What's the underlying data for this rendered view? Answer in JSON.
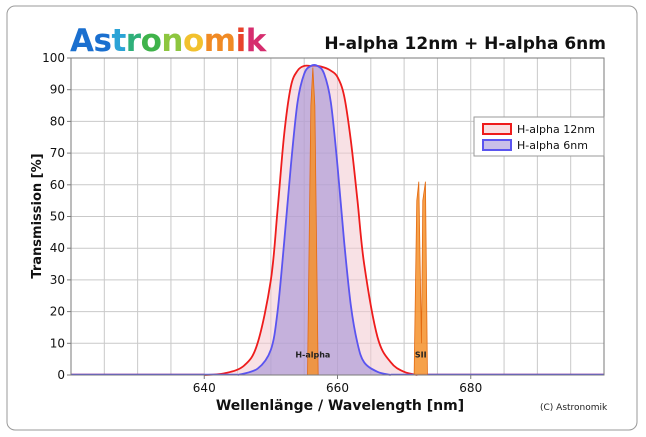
{
  "brand": {
    "name": "Astronomik",
    "letter_colors": [
      "#1a6fcf",
      "#1a6fcf",
      "#2ba3d6",
      "#2fb07a",
      "#3fb34a",
      "#8dc63f",
      "#f2c12e",
      "#f08a24",
      "#e8432b",
      "#d62d6e"
    ]
  },
  "colors": {
    "series_12nm_line": "#ee1c1c",
    "series_12nm_fill": "#f3c9cf",
    "series_6nm_line": "#5a54f0",
    "series_6nm_fill": "#9b8ad6",
    "emission_fill": "#f5902a",
    "emission_line": "#e46a10",
    "plot_bg": "#ffffff",
    "grid": "#c9c9c9"
  },
  "chart_data": {
    "type": "area",
    "title": "H-alpha 12nm + H-alpha 6nm",
    "xlabel": "Wellenlänge / Wavelength [nm]",
    "ylabel": "Transmission [%]",
    "xlim": [
      620,
      700
    ],
    "ylim": [
      0,
      100
    ],
    "xticks": [
      640,
      660,
      680
    ],
    "yticks": [
      0,
      10,
      20,
      30,
      40,
      50,
      60,
      70,
      80,
      90,
      100
    ],
    "grid": true,
    "legend_position": "top-right",
    "copyright": "(C) Astronomik",
    "series": [
      {
        "name": "H-alpha 12nm",
        "x": [
          640,
          643,
          646,
          648,
          650,
          651,
          652,
          653,
          654,
          655,
          656,
          657,
          658,
          659,
          660,
          661,
          662,
          663,
          664,
          666,
          668,
          670,
          672
        ],
        "y": [
          0,
          0.5,
          3,
          10,
          30,
          52,
          76,
          91,
          96,
          97.5,
          97.5,
          97.5,
          97,
          96,
          94,
          88,
          74,
          55,
          35,
          12,
          4,
          1,
          0
        ]
      },
      {
        "name": "H-alpha 6nm",
        "x": [
          645,
          648,
          650,
          651,
          652,
          653,
          654,
          655,
          656,
          657,
          658,
          659,
          660,
          661,
          662,
          663,
          664,
          666,
          668
        ],
        "y": [
          0,
          2,
          8,
          20,
          42,
          66,
          86,
          95,
          97.5,
          97.5,
          95,
          86,
          66,
          42,
          22,
          10,
          4,
          1,
          0
        ]
      }
    ],
    "emission_lines": [
      {
        "label": "H-alpha",
        "x": [
          655.5,
          656.0,
          656.3,
          656.6,
          657.1
        ],
        "y": [
          0,
          85,
          97,
          85,
          0
        ]
      },
      {
        "label": "SII",
        "x": [
          671.5,
          671.9,
          672.2,
          672.6,
          672.8,
          673.2,
          673.5
        ],
        "y": [
          0,
          55,
          61,
          10,
          55,
          61,
          0
        ]
      }
    ]
  }
}
